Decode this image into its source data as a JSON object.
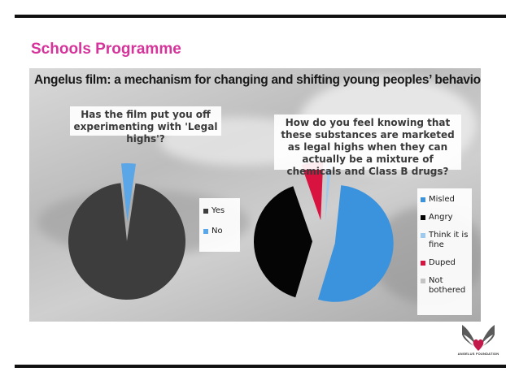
{
  "slide": {
    "section_title": "Schools Programme",
    "panel_title": "Angelus film: a mechanism for changing and shifting young peoples’ behaviour",
    "logo_text": "ANGELUS FOUNDATION"
  },
  "colors": {
    "section_title": "#d6339b",
    "yes": "#3d3d3d",
    "no": "#5aa6e6",
    "misled": "#3b93de",
    "angry": "#050505",
    "think_it_is_fine": "#9ccaf0",
    "duped": "#d8133f",
    "not_bothered": "#c4c4c4"
  },
  "chart_data": [
    {
      "type": "pie",
      "title": "Has the film put you off experimenting with 'Legal highs'?",
      "exploded": true,
      "series": [
        {
          "name": "Yes",
          "value": 96,
          "color": "#3d3d3d"
        },
        {
          "name": "No",
          "value": 4,
          "color": "#5aa6e6"
        }
      ],
      "legend": {
        "position": "right",
        "labels": [
          "Yes",
          "No"
        ]
      }
    },
    {
      "type": "pie",
      "title": "How do you feel knowing that these substances are marketed as legal highs when they can actually be a mixture of chemicals and Class B drugs?",
      "exploded": true,
      "series": [
        {
          "name": "Misled",
          "value": 53,
          "color": "#3b93de"
        },
        {
          "name": "Angry",
          "value": 40,
          "color": "#050505"
        },
        {
          "name": "Think it is fine",
          "value": 1,
          "color": "#9ccaf0"
        },
        {
          "name": "Duped",
          "value": 6,
          "color": "#d8133f"
        },
        {
          "name": "Not bothered",
          "value": 0,
          "color": "#c4c4c4"
        }
      ],
      "legend": {
        "position": "right",
        "labels": [
          "Misled",
          "Angry",
          "Think it is fine",
          "Duped",
          "Not bothered"
        ]
      }
    }
  ]
}
